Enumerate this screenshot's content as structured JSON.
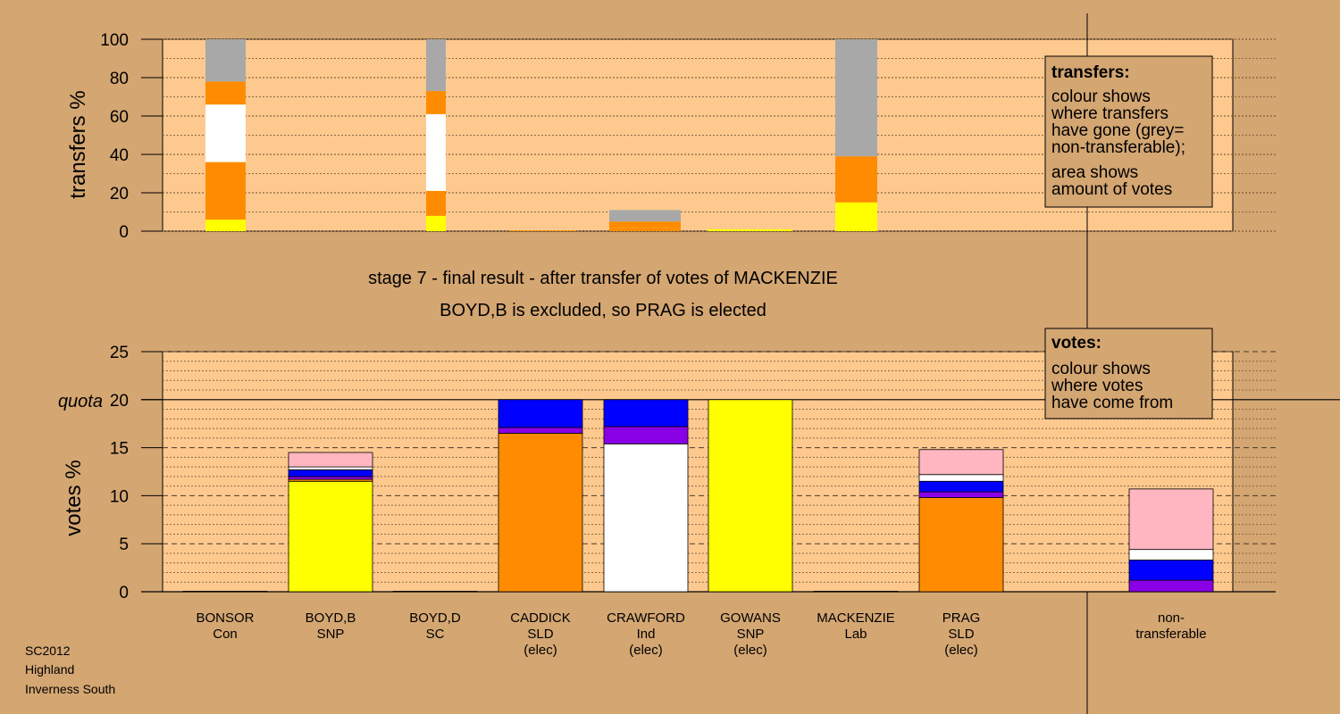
{
  "chart_data": [
    {
      "type": "bar",
      "ylabel": "transfers %",
      "ylim": [
        0,
        100
      ],
      "yticks": [
        0,
        20,
        40,
        60,
        80,
        100
      ],
      "stacked": true,
      "categories": [
        "BONSOR",
        "BOYD,D",
        "CADDICK",
        "CRAWFORD",
        "GOWANS",
        "MACKENZIE"
      ],
      "bars": [
        {
          "label": "BONSOR",
          "segments": [
            {
              "color": "#ffff00",
              "value": 6
            },
            {
              "color": "#ff8c00",
              "value": 30
            },
            {
              "color": "#ffffff",
              "value": 30
            },
            {
              "color": "#ff8c00",
              "value": 12
            },
            {
              "color": "#a8a8a8",
              "value": 22
            }
          ]
        },
        {
          "label": "BOYD,D",
          "segments": [
            {
              "color": "#ffff00",
              "value": 8
            },
            {
              "color": "#ff8c00",
              "value": 13
            },
            {
              "color": "#ffffff",
              "value": 40
            },
            {
              "color": "#ff8c00",
              "value": 12
            },
            {
              "color": "#a8a8a8",
              "value": 27
            }
          ]
        },
        {
          "label": "CADDICK",
          "segments": [
            {
              "color": "#ff8c00",
              "value": 0.4
            }
          ]
        },
        {
          "label": "CRAWFORD",
          "segments": [
            {
              "color": "#ff8c00",
              "value": 1.5
            },
            {
              "color": "#ff8c00",
              "value": 3.5
            },
            {
              "color": "#a8a8a8",
              "value": 6
            }
          ]
        },
        {
          "label": "GOWANS",
          "segments": [
            {
              "color": "#ffff00",
              "value": 1
            }
          ]
        },
        {
          "label": "MACKENZIE",
          "segments": [
            {
              "color": "#ffff00",
              "value": 15
            },
            {
              "color": "#ff8c00",
              "value": 24
            },
            {
              "color": "#a8a8a8",
              "value": 61
            }
          ]
        }
      ]
    },
    {
      "type": "bar",
      "ylabel": "votes %",
      "ylim": [
        0,
        25
      ],
      "yticks": [
        0,
        5,
        10,
        15,
        20,
        25
      ],
      "quota_label": "quota",
      "quota_value": 20,
      "stacked": true,
      "categories": [
        "BONSOR",
        "BOYD,B",
        "BOYD,D",
        "CADDICK",
        "CRAWFORD",
        "GOWANS",
        "MACKENZIE",
        "PRAG",
        "non-transferable"
      ],
      "bars": [
        {
          "label": "BONSOR",
          "segments": [
            {
              "color": "#ffff00",
              "value": 0.05
            }
          ]
        },
        {
          "label": "BOYD,B",
          "segments": [
            {
              "color": "#ffff00",
              "value": 11.5
            },
            {
              "color": "#ff8c00",
              "value": 0.2
            },
            {
              "color": "#8a00e6",
              "value": 0.3
            },
            {
              "color": "#0000ff",
              "value": 0.7
            },
            {
              "color": "#ffffff",
              "value": 0.3
            },
            {
              "color": "#ffb6c1",
              "value": 1.5
            }
          ]
        },
        {
          "label": "BOYD,D",
          "segments": [
            {
              "color": "#ffff00",
              "value": 0.05
            }
          ]
        },
        {
          "label": "CADDICK",
          "segments": [
            {
              "color": "#ff8c00",
              "value": 16.5
            },
            {
              "color": "#8a00e6",
              "value": 0.6
            },
            {
              "color": "#0000ff",
              "value": 2.9
            }
          ]
        },
        {
          "label": "CRAWFORD",
          "segments": [
            {
              "color": "#ffffff",
              "value": 15.4
            },
            {
              "color": "#8a00e6",
              "value": 1.8
            },
            {
              "color": "#0000ff",
              "value": 2.8
            }
          ]
        },
        {
          "label": "GOWANS",
          "segments": [
            {
              "color": "#ffff00",
              "value": 20
            }
          ]
        },
        {
          "label": "MACKENZIE",
          "segments": [
            {
              "color": "#ffff00",
              "value": 0.05
            }
          ]
        },
        {
          "label": "PRAG",
          "segments": [
            {
              "color": "#ff8c00",
              "value": 9.8
            },
            {
              "color": "#8a00e6",
              "value": 0.6
            },
            {
              "color": "#0000ff",
              "value": 1.1
            },
            {
              "color": "#ffffff",
              "value": 0.7
            },
            {
              "color": "#ffb6c1",
              "value": 2.6
            }
          ]
        },
        {
          "label": "non-transferable",
          "segments": [
            {
              "color": "#8a00e6",
              "value": 1.2
            },
            {
              "color": "#0000ff",
              "value": 2.1
            },
            {
              "color": "#ffffff",
              "value": 1.1
            },
            {
              "color": "#ffb6c1",
              "value": 6.3
            }
          ]
        }
      ]
    }
  ],
  "candidates": [
    {
      "lines": [
        "BONSOR",
        "Con"
      ]
    },
    {
      "lines": [
        "BOYD,B",
        "SNP"
      ]
    },
    {
      "lines": [
        "BOYD,D",
        "SC"
      ]
    },
    {
      "lines": [
        "CADDICK",
        "SLD",
        "(elec)"
      ]
    },
    {
      "lines": [
        "CRAWFORD",
        "Ind",
        "(elec)"
      ]
    },
    {
      "lines": [
        "GOWANS",
        "SNP",
        "(elec)"
      ]
    },
    {
      "lines": [
        "MACKENZIE",
        "Lab"
      ]
    },
    {
      "lines": [
        "PRAG",
        "SLD",
        "(elec)"
      ]
    },
    {
      "lines": [
        "non-",
        "transferable"
      ]
    }
  ],
  "stage_title": "stage 7 - final result - after transfer of votes of MACKENZIE",
  "stage_subtitle": "BOYD,B is excluded, so PRAG is elected",
  "transfers_legend": {
    "title": "transfers:",
    "line1": "colour shows",
    "line2": "where transfers",
    "line3": "have gone (grey=",
    "line4": "non-transferable);",
    "line5": "area shows",
    "line6": "amount of votes"
  },
  "votes_legend": {
    "title": "votes:",
    "line1": "colour shows",
    "line2": "where votes",
    "line3": "have come from"
  },
  "footer": {
    "line1": "SC2012",
    "line2": "Highland",
    "line3": "Inverness South"
  },
  "colors": {
    "background": "#d4a672",
    "plot_background": "#fec98f",
    "yellow": "#ffff00",
    "orange": "#ff8c00",
    "white": "#ffffff",
    "grey": "#a8a8a8",
    "blue": "#0000ff",
    "purple": "#8a00e6",
    "pink": "#ffb6c1"
  }
}
